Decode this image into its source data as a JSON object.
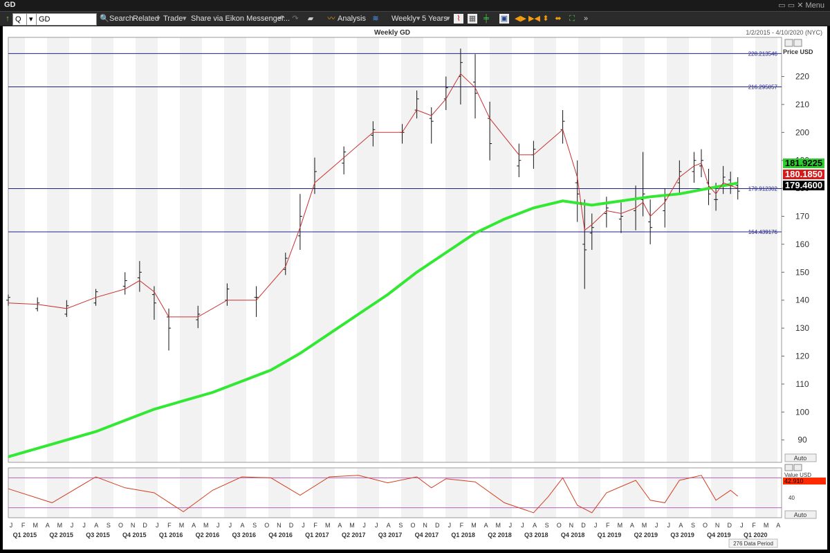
{
  "window": {
    "title": "GD",
    "menu_label": "Menu"
  },
  "toolbar": {
    "symbol_value": "GD",
    "quote_label": "Q",
    "search_label": "Search",
    "related_label": "Related",
    "trade_label": "Trade",
    "share_label": "Share via Eikon Messenger...",
    "analysis_label": "Analysis",
    "interval_label": "Weekly",
    "range_label": "5 Years"
  },
  "chart_header": {
    "title": "Weekly GD",
    "date_range": "1/2/2015 - 4/10/2020 (NYC)"
  },
  "colors": {
    "sma200": "#33e833",
    "ema": "#c83232",
    "hline": "#20208a",
    "osc_band": "#b860b8",
    "osc_line": "#d04020",
    "last_price_bg": "#000000",
    "sma_tag_bg": "#2ecc2e",
    "ema_tag_bg": "#d41a1a",
    "osc_tag_bg": "#ff2a00"
  },
  "chart_data": [
    {
      "type": "line",
      "title": "Weekly GD",
      "ylabel": "Price USD",
      "ylim": [
        82,
        234
      ],
      "y_ticks": [
        90,
        100,
        110,
        120,
        130,
        140,
        150,
        160,
        170,
        180,
        190,
        200,
        210,
        220
      ],
      "axis_mode_label": "Auto",
      "horizontal_lines": [
        {
          "value": 228.213546,
          "label": "228.213546"
        },
        {
          "value": 216.295057,
          "label": "216.295057"
        },
        {
          "value": 179.912302,
          "label": "179.912302"
        },
        {
          "value": 164.439176,
          "label": "164.439176"
        }
      ],
      "price_tags": [
        {
          "label": "181.9225",
          "value": 181.9225
        },
        {
          "label": "180.1850",
          "value": 180.185
        },
        {
          "label": "179.4600",
          "value": 179.46
        }
      ],
      "series": [
        {
          "kind": "bars",
          "values": [
            [
              2015.0,
              140,
              142,
              138,
              141
            ],
            [
              2015.2,
              137,
              141,
              136,
              139
            ],
            [
              2015.4,
              135,
              140,
              134,
              138
            ],
            [
              2015.6,
              139,
              144,
              138,
              143
            ],
            [
              2015.8,
              145,
              150,
              142,
              147
            ],
            [
              2015.9,
              148,
              154,
              143,
              150
            ],
            [
              2016.0,
              142,
              145,
              133,
              139
            ],
            [
              2016.1,
              134,
              137,
              122,
              130
            ],
            [
              2016.3,
              133,
              138,
              130,
              135
            ],
            [
              2016.5,
              140,
              146,
              138,
              144
            ],
            [
              2016.7,
              141,
              145,
              134,
              141
            ],
            [
              2016.9,
              151,
              157,
              149,
              155
            ],
            [
              2017.0,
              163,
              178,
              158,
              170
            ],
            [
              2017.1,
              180,
              191,
              178,
              186
            ],
            [
              2017.3,
              189,
              195,
              185,
              193
            ],
            [
              2017.5,
              199,
              204,
              195,
              201
            ],
            [
              2017.7,
              200,
              203,
              196,
              200
            ],
            [
              2017.8,
              208,
              215,
              205,
              212
            ],
            [
              2017.9,
              205,
              209,
              196,
              204
            ],
            [
              2018.0,
              212,
              220,
              208,
              216
            ],
            [
              2018.1,
              220,
              230,
              210,
              225
            ],
            [
              2018.2,
              218,
              228,
              205,
              214
            ],
            [
              2018.3,
              205,
              211,
              190,
              196
            ],
            [
              2018.5,
              188,
              196,
              184,
              190
            ],
            [
              2018.6,
              192,
              197,
              187,
              194
            ],
            [
              2018.8,
              201,
              208,
              196,
              204
            ],
            [
              2018.9,
              182,
              190,
              168,
              178
            ],
            [
              2018.95,
              160,
              176,
              144,
              158
            ],
            [
              2019.0,
              164,
              171,
              158,
              166
            ],
            [
              2019.1,
              171,
              177,
              166,
              173
            ],
            [
              2019.2,
              169,
              175,
              164,
              170
            ],
            [
              2019.3,
              172,
              181,
              165,
              176
            ],
            [
              2019.35,
              176,
              193,
              170,
              178
            ],
            [
              2019.4,
              168,
              176,
              160,
              166
            ],
            [
              2019.5,
              172,
              180,
              166,
              176
            ],
            [
              2019.6,
              182,
              190,
              178,
              186
            ],
            [
              2019.7,
              186,
              193,
              182,
              190
            ],
            [
              2019.75,
              188,
              194,
              184,
              190
            ],
            [
              2019.8,
              182,
              187,
              174,
              178
            ],
            [
              2019.85,
              176,
              182,
              172,
              176
            ],
            [
              2019.9,
              181,
              188,
              178,
              184
            ],
            [
              2019.95,
              183,
              186,
              178,
              181
            ],
            [
              2020.0,
              181,
              184,
              176,
              179
            ]
          ]
        },
        {
          "kind": "ema",
          "values": [
            [
              2015.0,
              139
            ],
            [
              2015.2,
              138.5
            ],
            [
              2015.4,
              137
            ],
            [
              2015.6,
              141
            ],
            [
              2015.8,
              144
            ],
            [
              2015.9,
              147
            ],
            [
              2016.0,
              143
            ],
            [
              2016.1,
              134
            ],
            [
              2016.3,
              134
            ],
            [
              2016.5,
              140
            ],
            [
              2016.7,
              140
            ],
            [
              2016.9,
              152
            ],
            [
              2017.0,
              166
            ],
            [
              2017.1,
              182
            ],
            [
              2017.3,
              191
            ],
            [
              2017.5,
              200
            ],
            [
              2017.7,
              200
            ],
            [
              2017.8,
              208
            ],
            [
              2017.9,
              206
            ],
            [
              2018.0,
              212
            ],
            [
              2018.1,
              221
            ],
            [
              2018.2,
              216
            ],
            [
              2018.3,
              205
            ],
            [
              2018.5,
              192
            ],
            [
              2018.6,
              192
            ],
            [
              2018.8,
              201
            ],
            [
              2018.9,
              184
            ],
            [
              2018.95,
              165
            ],
            [
              2019.0,
              167
            ],
            [
              2019.1,
              172
            ],
            [
              2019.2,
              171
            ],
            [
              2019.3,
              173
            ],
            [
              2019.35,
              175
            ],
            [
              2019.4,
              170
            ],
            [
              2019.5,
              175
            ],
            [
              2019.6,
              184
            ],
            [
              2019.7,
              188
            ],
            [
              2019.75,
              189
            ],
            [
              2019.8,
              181
            ],
            [
              2019.85,
              178
            ],
            [
              2019.9,
              182
            ],
            [
              2019.95,
              181
            ],
            [
              2020.0,
              180
            ]
          ]
        },
        {
          "kind": "sma200",
          "values": [
            [
              2015.0,
              84
            ],
            [
              2015.2,
              87
            ],
            [
              2015.4,
              90
            ],
            [
              2015.6,
              93
            ],
            [
              2015.8,
              97
            ],
            [
              2016.0,
              101
            ],
            [
              2016.2,
              104
            ],
            [
              2016.4,
              107
            ],
            [
              2016.6,
              111
            ],
            [
              2016.8,
              115
            ],
            [
              2017.0,
              121
            ],
            [
              2017.2,
              128
            ],
            [
              2017.4,
              135
            ],
            [
              2017.6,
              142
            ],
            [
              2017.8,
              150
            ],
            [
              2018.0,
              157
            ],
            [
              2018.2,
              164
            ],
            [
              2018.4,
              169
            ],
            [
              2018.6,
              173
            ],
            [
              2018.8,
              175.5
            ],
            [
              2019.0,
              174
            ],
            [
              2019.2,
              175.5
            ],
            [
              2019.4,
              177
            ],
            [
              2019.6,
              178
            ],
            [
              2019.8,
              180
            ],
            [
              2020.0,
              181.9
            ]
          ]
        }
      ],
      "x_months": [
        "J",
        "F",
        "M",
        "A",
        "M",
        "J",
        "J",
        "A",
        "S",
        "O",
        "N",
        "D",
        "J",
        "F",
        "M",
        "A",
        "M",
        "J",
        "J",
        "A",
        "S",
        "O",
        "N",
        "D",
        "J",
        "F",
        "M",
        "A",
        "M",
        "J",
        "J",
        "A",
        "S",
        "O",
        "N",
        "D",
        "J",
        "F",
        "M",
        "A",
        "M",
        "J",
        "J",
        "A",
        "S",
        "O",
        "N",
        "D",
        "J",
        "F",
        "M",
        "A",
        "M",
        "J",
        "J",
        "A",
        "S",
        "O",
        "N",
        "D",
        "J",
        "F",
        "M",
        "A"
      ],
      "x_quarters": [
        "Q1 2015",
        "Q2 2015",
        "Q3 2015",
        "Q4 2015",
        "Q1 2016",
        "Q2 2016",
        "Q3 2016",
        "Q4 2016",
        "Q1 2017",
        "Q2 2017",
        "Q3 2017",
        "Q4 2017",
        "Q1 2018",
        "Q2 2018",
        "Q3 2018",
        "Q4 2018",
        "Q1 2019",
        "Q2 2019",
        "Q3 2019",
        "Q4 2019",
        "Q1 2020"
      ],
      "footer_label": "276 Data Period"
    },
    {
      "type": "line",
      "ylabel": "Value USD",
      "y_ticks": [
        40
      ],
      "current_label": "42.910",
      "axis_mode_label": "Auto",
      "bands": [
        80,
        20
      ],
      "series": [
        {
          "values": [
            [
              2015.0,
              58
            ],
            [
              2015.3,
              30
            ],
            [
              2015.6,
              82
            ],
            [
              2015.8,
              60
            ],
            [
              2016.0,
              50
            ],
            [
              2016.2,
              12
            ],
            [
              2016.4,
              55
            ],
            [
              2016.6,
              82
            ],
            [
              2016.8,
              80
            ],
            [
              2017.0,
              45
            ],
            [
              2017.2,
              82
            ],
            [
              2017.4,
              85
            ],
            [
              2017.6,
              70
            ],
            [
              2017.8,
              82
            ],
            [
              2017.9,
              60
            ],
            [
              2018.0,
              78
            ],
            [
              2018.2,
              72
            ],
            [
              2018.4,
              30
            ],
            [
              2018.6,
              10
            ],
            [
              2018.7,
              42
            ],
            [
              2018.8,
              80
            ],
            [
              2018.9,
              25
            ],
            [
              2019.0,
              10
            ],
            [
              2019.1,
              50
            ],
            [
              2019.3,
              75
            ],
            [
              2019.4,
              35
            ],
            [
              2019.5,
              30
            ],
            [
              2019.6,
              75
            ],
            [
              2019.75,
              85
            ],
            [
              2019.85,
              35
            ],
            [
              2019.95,
              55
            ],
            [
              2020.0,
              43
            ]
          ]
        }
      ]
    }
  ]
}
